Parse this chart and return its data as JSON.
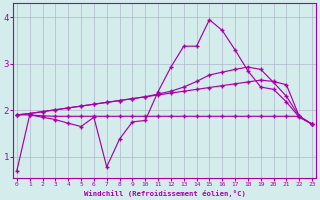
{
  "xlabel": "Windchill (Refroidissement éolien,°C)",
  "background_color": "#d4ecec",
  "grid_color": "#b0b8cc",
  "line_color": "#aa00aa",
  "x_ticks": [
    0,
    1,
    2,
    3,
    4,
    5,
    6,
    7,
    8,
    9,
    10,
    11,
    12,
    13,
    14,
    15,
    16,
    17,
    18,
    19,
    20,
    21,
    22,
    23
  ],
  "y_ticks": [
    1,
    2,
    3,
    4
  ],
  "ylim": [
    0.55,
    4.3
  ],
  "xlim": [
    -0.3,
    23.3
  ],
  "series_main": [
    0.7,
    1.9,
    1.85,
    1.8,
    1.72,
    1.65,
    1.85,
    0.78,
    1.38,
    1.75,
    1.78,
    2.4,
    2.93,
    3.38,
    3.38,
    3.95,
    3.72,
    3.3,
    2.85,
    2.5,
    2.45,
    2.18,
    1.85,
    1.7
  ],
  "series_flat": [
    1.9,
    1.9,
    1.88,
    1.87,
    1.87,
    1.87,
    1.87,
    1.87,
    1.87,
    1.87,
    1.87,
    1.87,
    1.87,
    1.87,
    1.87,
    1.87,
    1.87,
    1.87,
    1.87,
    1.87,
    1.87,
    1.87,
    1.87,
    1.7
  ],
  "series_slope1": [
    1.9,
    1.93,
    1.97,
    2.01,
    2.05,
    2.09,
    2.13,
    2.17,
    2.21,
    2.25,
    2.29,
    2.33,
    2.37,
    2.41,
    2.45,
    2.49,
    2.53,
    2.57,
    2.61,
    2.65,
    2.62,
    2.55,
    1.87,
    1.7
  ],
  "series_slope2": [
    1.9,
    1.93,
    1.97,
    2.01,
    2.05,
    2.09,
    2.13,
    2.17,
    2.21,
    2.25,
    2.29,
    2.35,
    2.41,
    2.5,
    2.62,
    2.76,
    2.82,
    2.88,
    2.93,
    2.88,
    2.6,
    2.3,
    1.87,
    1.7
  ]
}
